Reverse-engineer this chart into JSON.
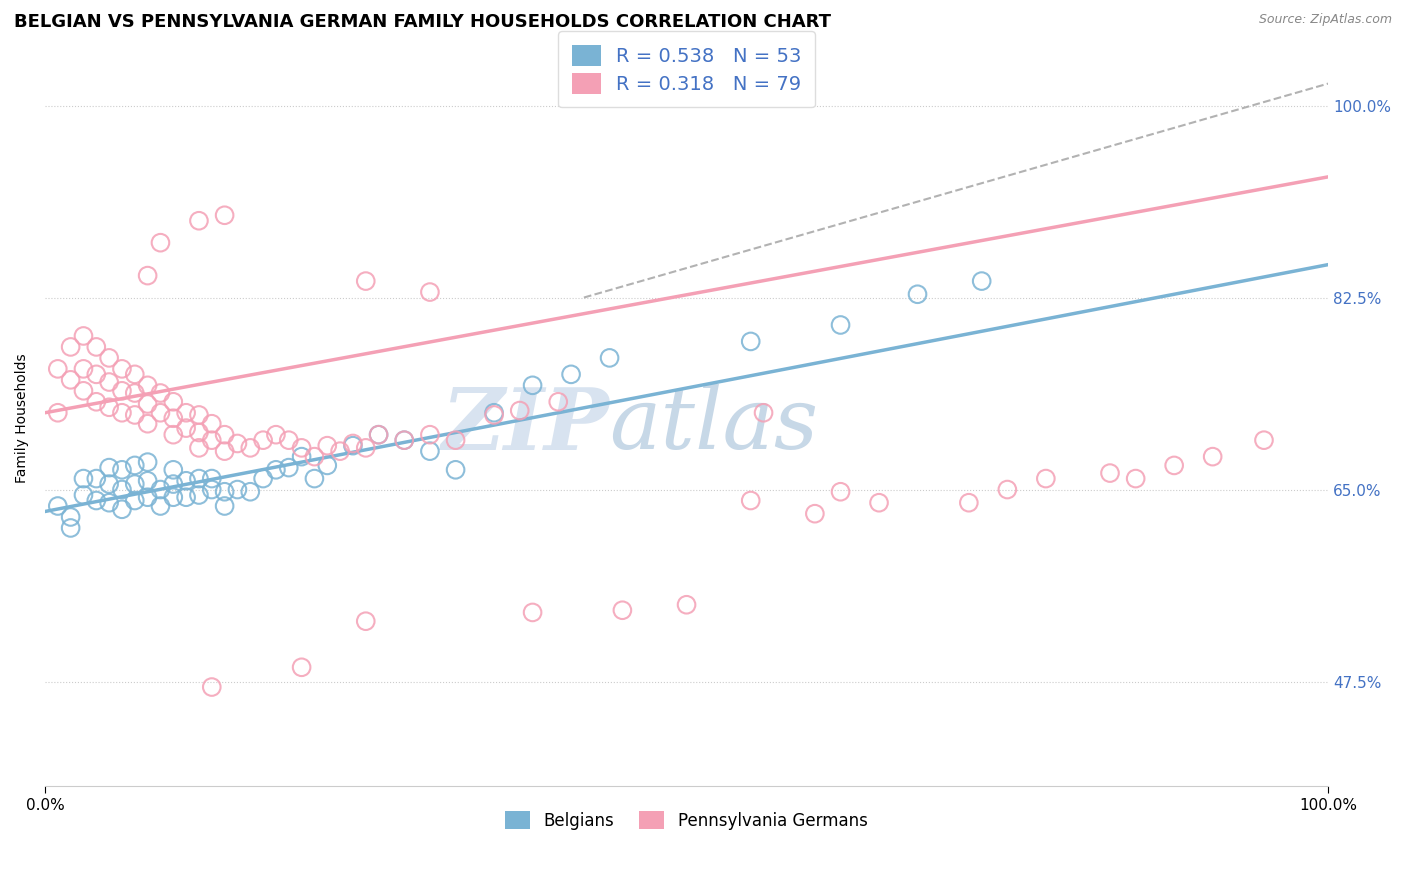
{
  "title": "BELGIAN VS PENNSYLVANIA GERMAN FAMILY HOUSEHOLDS CORRELATION CHART",
  "source": "Source: ZipAtlas.com",
  "ylabel": "Family Households",
  "yticks": [
    "47.5%",
    "65.0%",
    "82.5%",
    "100.0%"
  ],
  "ytick_values": [
    0.475,
    0.65,
    0.825,
    1.0
  ],
  "xlim": [
    0.0,
    1.0
  ],
  "ylim": [
    0.38,
    1.05
  ],
  "legend_blue_label": "R = 0.538   N = 53",
  "legend_pink_label": "R = 0.318   N = 79",
  "blue_color": "#7ab3d4",
  "pink_color": "#f4a0b5",
  "watermark_zip": "ZIP",
  "watermark_atlas": "atlas",
  "watermark_color": "#c8d8e8",
  "watermark_atlas_color": "#b8c8d8",
  "blue_line_x": [
    0.0,
    1.0
  ],
  "blue_line_y": [
    0.63,
    0.855
  ],
  "pink_line_x": [
    0.0,
    1.0
  ],
  "pink_line_y": [
    0.72,
    0.935
  ],
  "dash_line_x": [
    0.42,
    1.0
  ],
  "dash_line_y": [
    0.825,
    1.02
  ],
  "legend_items": [
    "Belgians",
    "Pennsylvania Germans"
  ],
  "background_color": "#ffffff",
  "grid_color": "#e0e0e0",
  "title_fontsize": 13,
  "axis_label_fontsize": 10,
  "tick_fontsize": 11,
  "blue_scatter_x": [
    0.01,
    0.02,
    0.02,
    0.03,
    0.03,
    0.04,
    0.04,
    0.05,
    0.05,
    0.05,
    0.06,
    0.06,
    0.06,
    0.07,
    0.07,
    0.07,
    0.08,
    0.08,
    0.08,
    0.09,
    0.09,
    0.1,
    0.1,
    0.1,
    0.11,
    0.11,
    0.12,
    0.12,
    0.13,
    0.13,
    0.14,
    0.14,
    0.15,
    0.16,
    0.17,
    0.18,
    0.19,
    0.2,
    0.21,
    0.22,
    0.24,
    0.26,
    0.28,
    0.3,
    0.32,
    0.35,
    0.38,
    0.41,
    0.44,
    0.55,
    0.62,
    0.68,
    0.73
  ],
  "blue_scatter_y": [
    0.635,
    0.625,
    0.615,
    0.66,
    0.645,
    0.66,
    0.64,
    0.67,
    0.655,
    0.638,
    0.668,
    0.65,
    0.632,
    0.672,
    0.655,
    0.64,
    0.675,
    0.658,
    0.643,
    0.65,
    0.635,
    0.655,
    0.643,
    0.668,
    0.658,
    0.643,
    0.66,
    0.645,
    0.65,
    0.66,
    0.648,
    0.635,
    0.65,
    0.648,
    0.66,
    0.668,
    0.67,
    0.68,
    0.66,
    0.672,
    0.69,
    0.7,
    0.695,
    0.685,
    0.668,
    0.72,
    0.745,
    0.755,
    0.77,
    0.785,
    0.8,
    0.828,
    0.84
  ],
  "pink_scatter_x": [
    0.01,
    0.01,
    0.02,
    0.02,
    0.03,
    0.03,
    0.03,
    0.04,
    0.04,
    0.04,
    0.05,
    0.05,
    0.05,
    0.06,
    0.06,
    0.06,
    0.07,
    0.07,
    0.07,
    0.08,
    0.08,
    0.08,
    0.09,
    0.09,
    0.1,
    0.1,
    0.1,
    0.11,
    0.11,
    0.12,
    0.12,
    0.12,
    0.13,
    0.13,
    0.14,
    0.14,
    0.15,
    0.16,
    0.17,
    0.18,
    0.19,
    0.2,
    0.21,
    0.22,
    0.23,
    0.24,
    0.25,
    0.26,
    0.28,
    0.3,
    0.32,
    0.35,
    0.37,
    0.4,
    0.3,
    0.25,
    0.12,
    0.14,
    0.55,
    0.62,
    0.56,
    0.65,
    0.75,
    0.78,
    0.83,
    0.88,
    0.91,
    0.95,
    0.13,
    0.2,
    0.08,
    0.09,
    0.25,
    0.38,
    0.45,
    0.5,
    0.6,
    0.72,
    0.85
  ],
  "pink_scatter_y": [
    0.76,
    0.72,
    0.78,
    0.75,
    0.79,
    0.76,
    0.74,
    0.78,
    0.755,
    0.73,
    0.77,
    0.748,
    0.725,
    0.76,
    0.74,
    0.72,
    0.755,
    0.738,
    0.718,
    0.745,
    0.728,
    0.71,
    0.738,
    0.72,
    0.73,
    0.715,
    0.7,
    0.72,
    0.706,
    0.718,
    0.702,
    0.688,
    0.71,
    0.695,
    0.7,
    0.685,
    0.692,
    0.688,
    0.695,
    0.7,
    0.695,
    0.688,
    0.68,
    0.69,
    0.685,
    0.692,
    0.688,
    0.7,
    0.695,
    0.7,
    0.695,
    0.718,
    0.722,
    0.73,
    0.83,
    0.84,
    0.895,
    0.9,
    0.64,
    0.648,
    0.72,
    0.638,
    0.65,
    0.66,
    0.665,
    0.672,
    0.68,
    0.695,
    0.47,
    0.488,
    0.845,
    0.875,
    0.53,
    0.538,
    0.54,
    0.545,
    0.628,
    0.638,
    0.66
  ]
}
